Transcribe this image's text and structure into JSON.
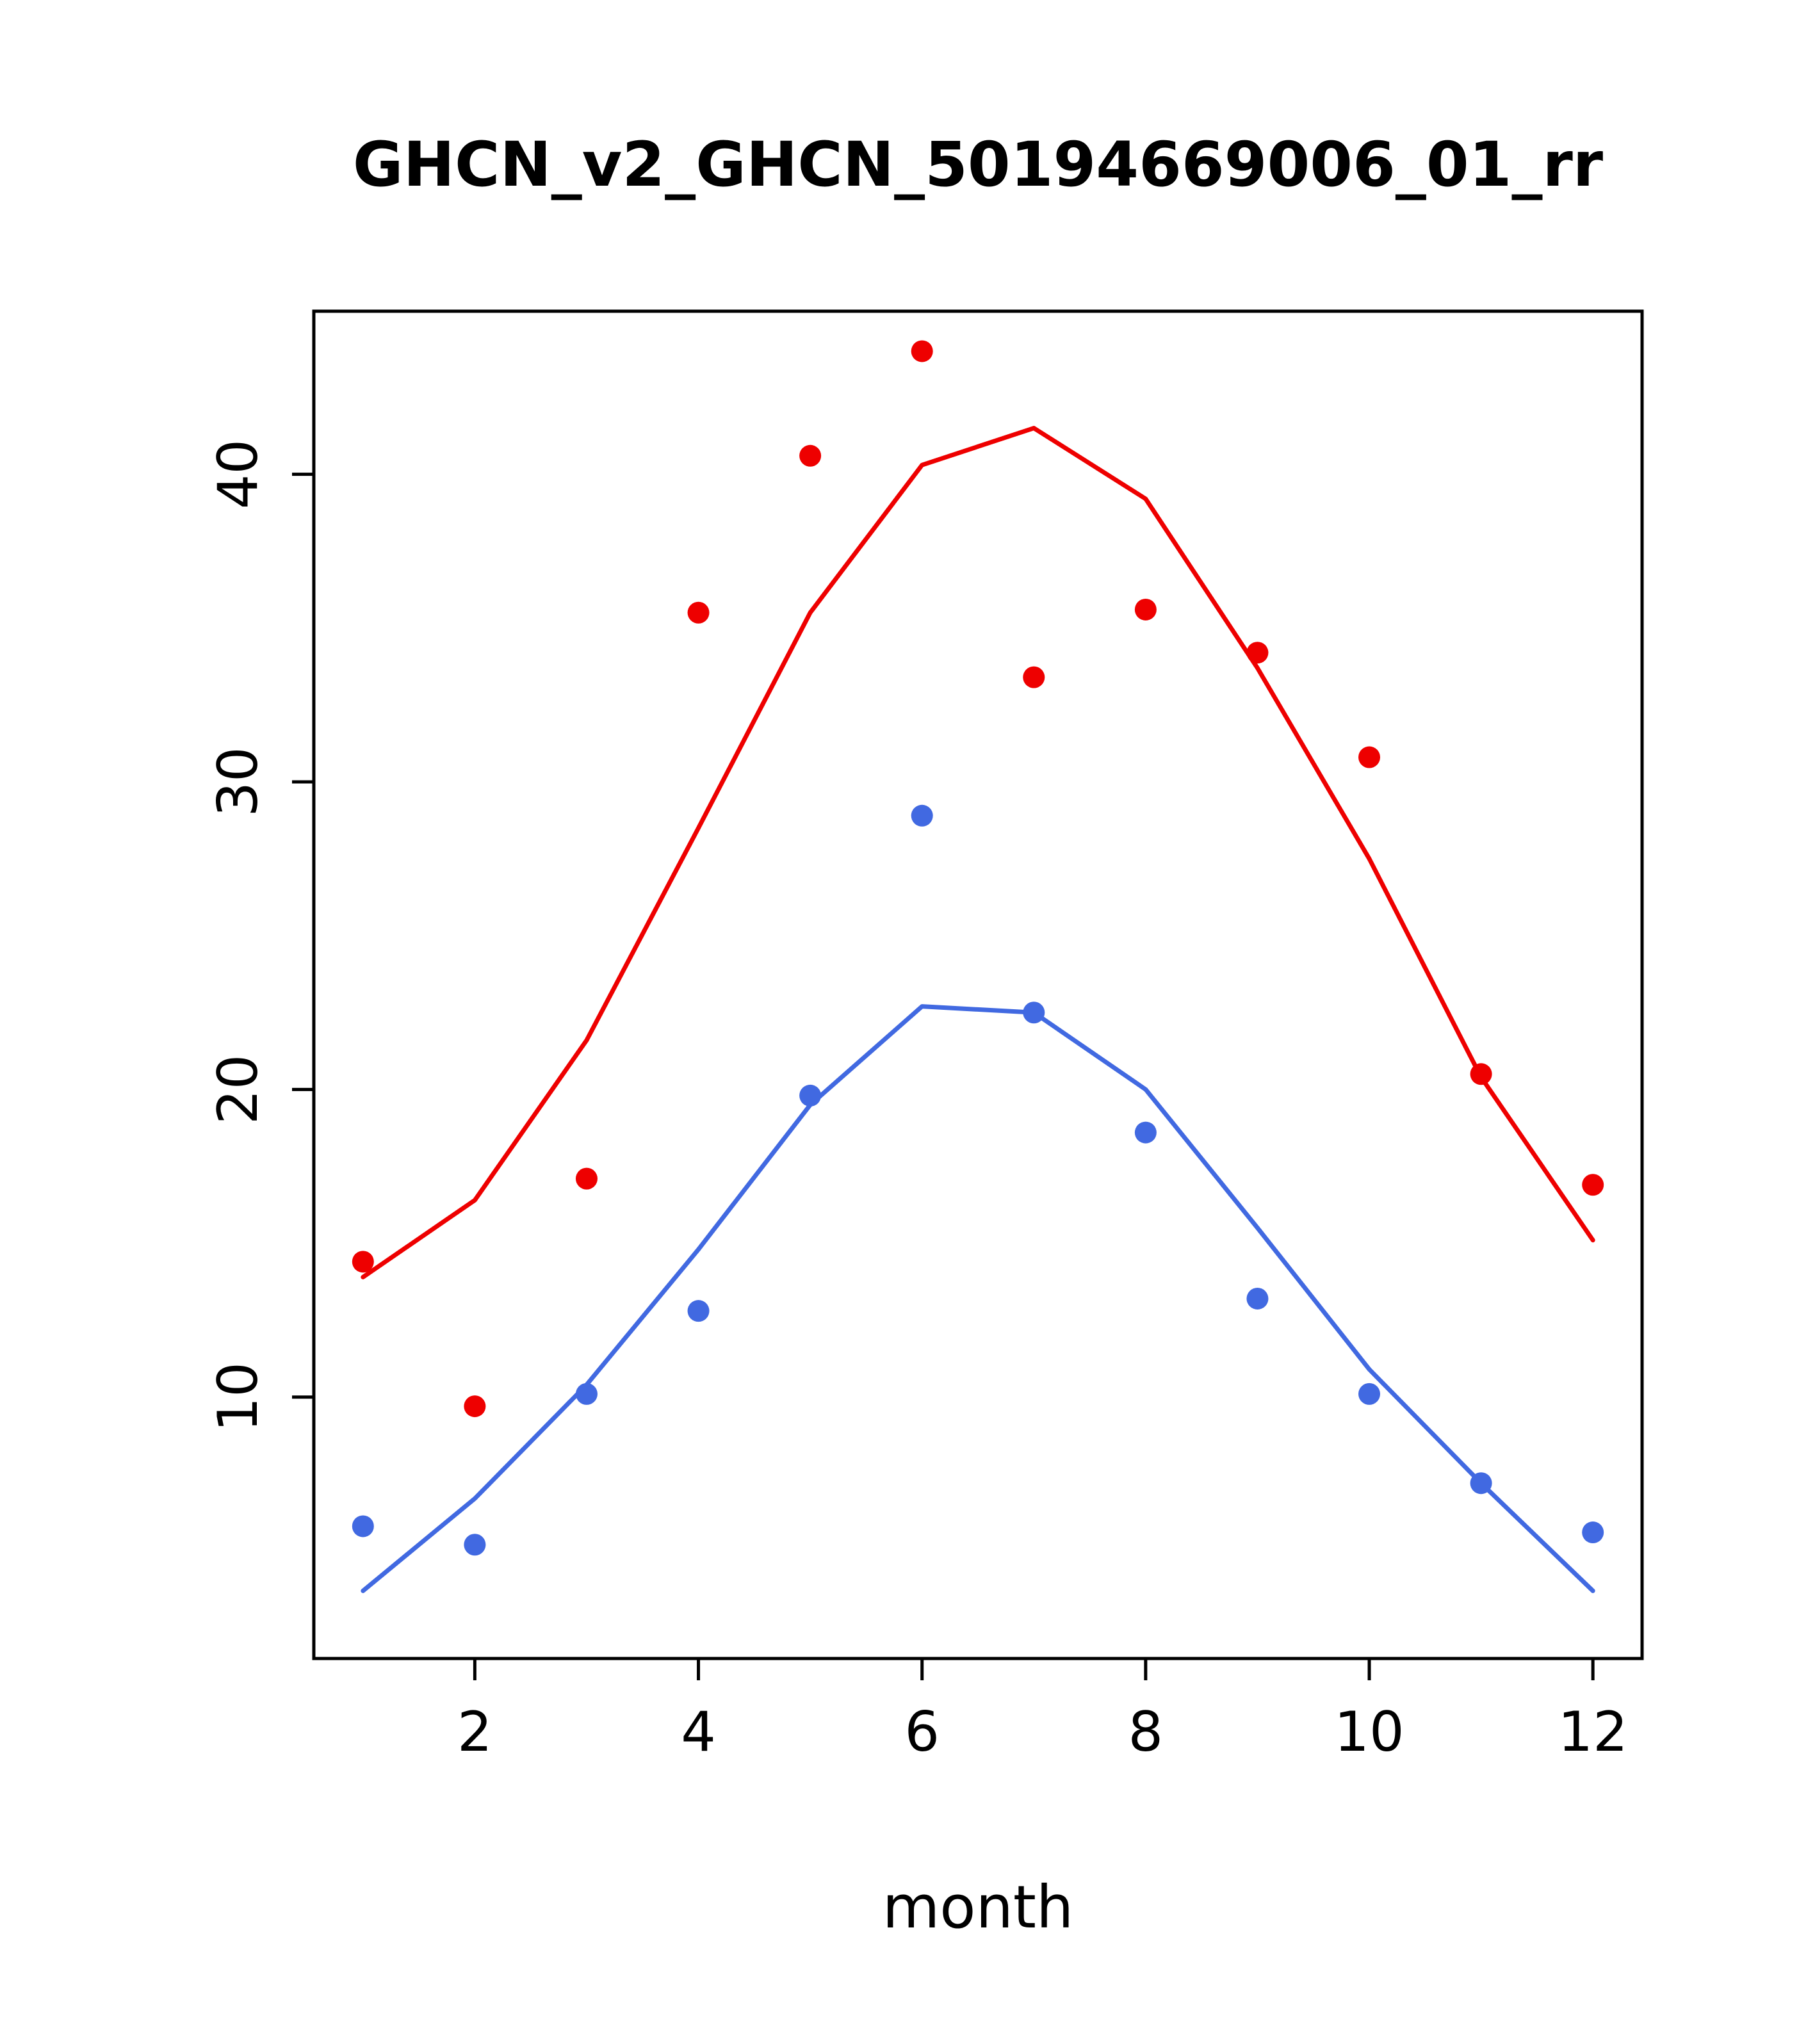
{
  "title": "GHCN_v2_GHCN_50194669006_01_rr",
  "chart_data": {
    "type": "scatter",
    "title": "GHCN_v2_GHCN_50194669006_01_rr",
    "xlabel": "month",
    "ylabel": "",
    "x": [
      1,
      2,
      3,
      4,
      5,
      6,
      7,
      8,
      9,
      10,
      11,
      12
    ],
    "xticks": [
      2,
      4,
      6,
      8,
      10,
      12
    ],
    "yticks": [
      10,
      20,
      30,
      40
    ],
    "xlim": [
      0.56,
      12.44
    ],
    "ylim": [
      1.5,
      45.3
    ],
    "grid": false,
    "legend": "none",
    "series": [
      {
        "name": "red-line",
        "kind": "line",
        "color": "#ee0000",
        "values": [
          13.9,
          16.4,
          21.6,
          28.5,
          35.5,
          40.3,
          41.5,
          39.2,
          33.7,
          27.5,
          20.4,
          15.1
        ]
      },
      {
        "name": "blue-line",
        "kind": "line",
        "color": "#4169e1",
        "values": [
          3.7,
          6.7,
          10.4,
          14.8,
          19.5,
          22.7,
          22.5,
          20.0,
          15.5,
          10.9,
          7.2,
          3.7
        ]
      },
      {
        "name": "red-points",
        "kind": "points",
        "color": "#ee0000",
        "values": [
          14.4,
          9.7,
          17.1,
          35.5,
          40.6,
          44.0,
          33.4,
          35.6,
          34.2,
          30.8,
          20.5,
          16.9
        ]
      },
      {
        "name": "blue-points",
        "kind": "points",
        "color": "#4169e1",
        "values": [
          5.8,
          5.2,
          10.1,
          12.8,
          19.8,
          28.9,
          22.5,
          18.6,
          13.2,
          10.1,
          7.2,
          5.6
        ]
      }
    ],
    "axis_color": "#000000"
  }
}
